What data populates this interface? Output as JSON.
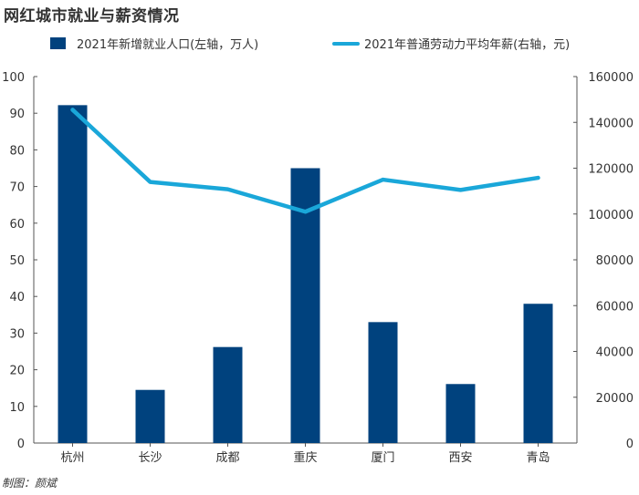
{
  "title": "网红城市就业与薪资情况",
  "credit": "制图：颜斌",
  "colors": {
    "bar": "#00427e",
    "line": "#1aa7d9",
    "axis": "#555555",
    "text": "#333333"
  },
  "chart_data": {
    "type": "bar+line",
    "categories": [
      "杭州",
      "长沙",
      "成都",
      "重庆",
      "厦门",
      "西安",
      "青岛"
    ],
    "series": [
      {
        "name": "2021年新增就业人口(左轴，万人)",
        "type": "bar",
        "axis": "left",
        "values": [
          92.2,
          14.5,
          26.2,
          75.0,
          33.0,
          16.1,
          38.0
        ]
      },
      {
        "name": "2021年普通劳动力平均年薪(右轴，元)",
        "type": "line",
        "axis": "right",
        "values": [
          145500,
          114000,
          110800,
          101000,
          115000,
          110500,
          115800
        ]
      }
    ],
    "y_left": {
      "min": 0,
      "max": 100,
      "ticks": [
        0,
        10,
        20,
        30,
        40,
        50,
        60,
        70,
        80,
        90,
        100
      ]
    },
    "y_right": {
      "min": 0,
      "max": 160000,
      "ticks": [
        0,
        20000,
        40000,
        60000,
        80000,
        100000,
        120000,
        140000,
        160000
      ]
    },
    "legend_position": "top"
  }
}
